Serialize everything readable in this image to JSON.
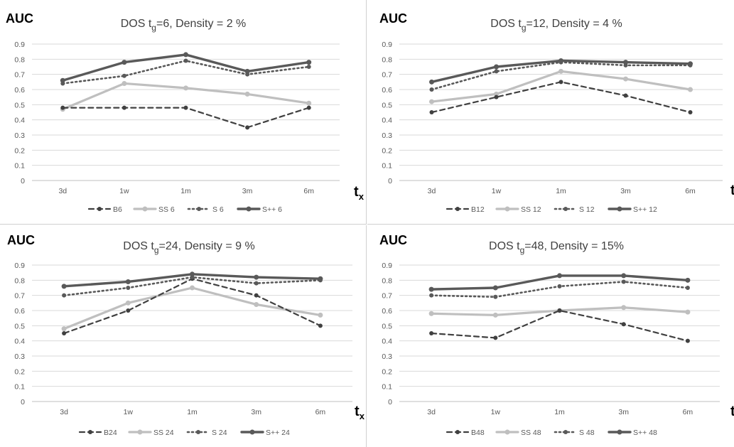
{
  "colors": {
    "B": "#404040",
    "SS": "#bfbfbf",
    "S": "#595959",
    "Spp": "#595959",
    "grid": "#d9d9d9"
  },
  "chart_data": [
    {
      "type": "line",
      "ylabel": "AUC",
      "title_pre": "DOS t",
      "title_sub": "g",
      "title_post": "=6, Density = 2 %",
      "xlabel": "t",
      "xlabel_sub": "x",
      "categories": [
        "3d",
        "1w",
        "1m",
        "3m",
        "6m"
      ],
      "yticks": [
        "0",
        "0.1",
        "0.2",
        "0.3",
        "0.4",
        "0.5",
        "0.6",
        "0.7",
        "0.8",
        "0.9"
      ],
      "ylim": [
        0,
        0.9
      ],
      "grid": true,
      "legend": "bottom",
      "series": [
        {
          "name": "B6",
          "style": "dashed",
          "values": [
            0.48,
            0.48,
            0.48,
            0.35,
            0.48
          ]
        },
        {
          "name": "SS 6",
          "style": "light",
          "values": [
            0.47,
            0.64,
            0.61,
            0.57,
            0.51
          ]
        },
        {
          "name": "S 6",
          "style": "dotted",
          "values": [
            0.64,
            0.69,
            0.79,
            0.7,
            0.75
          ]
        },
        {
          "name": "S++ 6",
          "style": "solid",
          "values": [
            0.66,
            0.78,
            0.83,
            0.72,
            0.78
          ]
        }
      ]
    },
    {
      "type": "line",
      "ylabel": "AUC",
      "title_pre": "DOS t",
      "title_sub": "g",
      "title_post": "=12, Density = 4 %",
      "xlabel": "t",
      "xlabel_sub": "x",
      "categories": [
        "3d",
        "1w",
        "1m",
        "3m",
        "6m"
      ],
      "yticks": [
        "0",
        "0.1",
        "0.2",
        "0.3",
        "0.4",
        "0.5",
        "0.6",
        "0.7",
        "0.8",
        "0.9"
      ],
      "ylim": [
        0,
        0.9
      ],
      "grid": true,
      "legend": "bottom",
      "series": [
        {
          "name": "B12",
          "style": "dashed",
          "values": [
            0.45,
            0.55,
            0.65,
            0.56,
            0.45
          ]
        },
        {
          "name": "SS 12",
          "style": "light",
          "values": [
            0.52,
            0.57,
            0.72,
            0.67,
            0.6
          ]
        },
        {
          "name": "S 12",
          "style": "dotted",
          "values": [
            0.6,
            0.72,
            0.78,
            0.76,
            0.76
          ]
        },
        {
          "name": "S++ 12",
          "style": "solid",
          "values": [
            0.65,
            0.75,
            0.79,
            0.78,
            0.77
          ]
        }
      ]
    },
    {
      "type": "line",
      "ylabel": "AUC",
      "title_pre": "DOS t",
      "title_sub": "g",
      "title_post": "=24, Density = 9 %",
      "xlabel": "t",
      "xlabel_sub": "x",
      "categories": [
        "3d",
        "1w",
        "1m",
        "3m",
        "6m"
      ],
      "yticks": [
        "0",
        "0.1",
        "0.2",
        "0.3",
        "0.4",
        "0.5",
        "0.6",
        "0.7",
        "0.8",
        "0.9"
      ],
      "ylim": [
        0,
        0.9
      ],
      "grid": true,
      "legend": "bottom",
      "series": [
        {
          "name": "B24",
          "style": "dashed",
          "values": [
            0.45,
            0.6,
            0.81,
            0.7,
            0.5
          ]
        },
        {
          "name": "SS 24",
          "style": "light",
          "values": [
            0.48,
            0.65,
            0.75,
            0.64,
            0.57
          ]
        },
        {
          "name": "S 24",
          "style": "dotted",
          "values": [
            0.7,
            0.75,
            0.82,
            0.78,
            0.8
          ]
        },
        {
          "name": "S++ 24",
          "style": "solid",
          "values": [
            0.76,
            0.79,
            0.84,
            0.82,
            0.81
          ]
        }
      ]
    },
    {
      "type": "line",
      "ylabel": "AUC",
      "title_pre": "DOS t",
      "title_sub": "g",
      "title_post": "=48, Density = 15%",
      "xlabel": "t",
      "xlabel_sub": "x",
      "categories": [
        "3d",
        "1w",
        "1m",
        "3m",
        "6m"
      ],
      "yticks": [
        "0",
        "0.1",
        "0.2",
        "0.3",
        "0.4",
        "0.5",
        "0.6",
        "0.7",
        "0.8",
        "0.9"
      ],
      "ylim": [
        0,
        0.9
      ],
      "grid": true,
      "legend": "bottom",
      "series": [
        {
          "name": "B48",
          "style": "dashed",
          "values": [
            0.45,
            0.42,
            0.6,
            0.51,
            0.4
          ]
        },
        {
          "name": "SS 48",
          "style": "light",
          "values": [
            0.58,
            0.57,
            0.6,
            0.62,
            0.59
          ]
        },
        {
          "name": "S 48",
          "style": "dotted",
          "values": [
            0.7,
            0.69,
            0.76,
            0.79,
            0.75
          ]
        },
        {
          "name": "S++ 48",
          "style": "solid",
          "values": [
            0.74,
            0.75,
            0.83,
            0.83,
            0.8
          ]
        }
      ]
    }
  ]
}
